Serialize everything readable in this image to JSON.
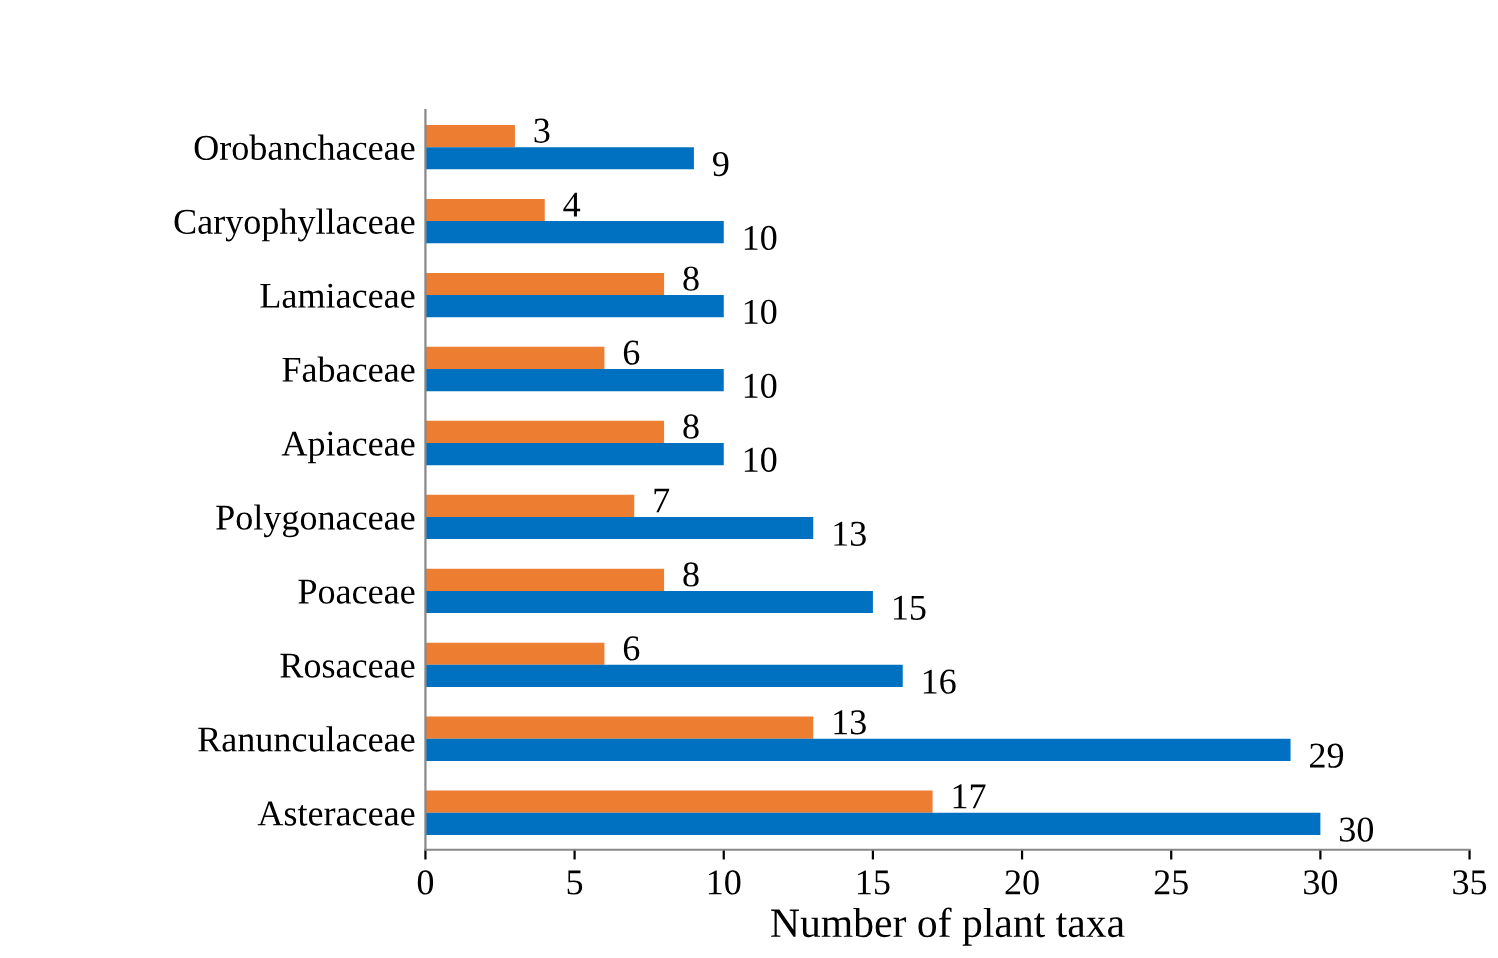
{
  "chart_data": {
    "type": "bar",
    "orientation": "horizontal",
    "xlabel": "Number of plant taxa",
    "categories": [
      "Orobanchaceae",
      "Caryophyllaceae",
      "Lamiaceae",
      "Fabaceae",
      "Apiaceae",
      "Polygonaceae",
      "Poaceae",
      "Rosaceae",
      "Ranunculaceae",
      "Asteraceae"
    ],
    "series": [
      {
        "color": "#ed7d31",
        "values": [
          3,
          4,
          8,
          6,
          8,
          7,
          8,
          6,
          13,
          17
        ]
      },
      {
        "color": "#0070c0",
        "values": [
          9,
          10,
          10,
          10,
          10,
          13,
          15,
          16,
          29,
          30
        ]
      }
    ],
    "xlim": [
      0,
      35
    ],
    "xticks": [
      0,
      5,
      10,
      15,
      20,
      25,
      30,
      35
    ],
    "data_labels": true,
    "grid": false,
    "legend": false
  }
}
